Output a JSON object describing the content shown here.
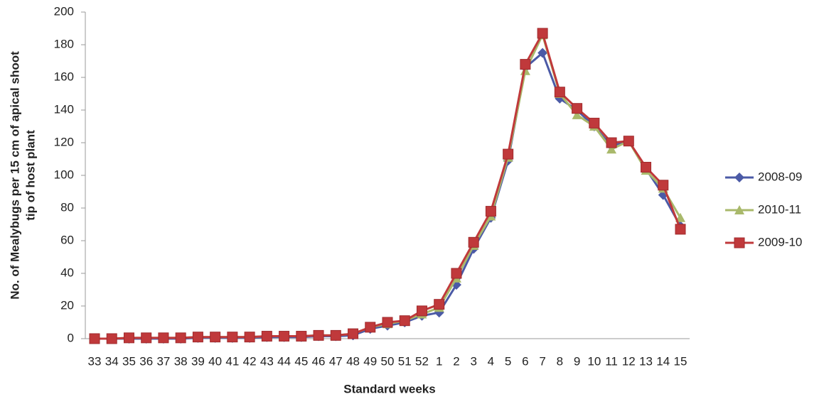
{
  "chart_data": {
    "type": "line",
    "x_label": "Standard weeks",
    "y_label": [
      "No. of Mealybugs per 15 cm of apical shoot",
      "tip of host plant"
    ],
    "categories": [
      "33",
      "34",
      "35",
      "36",
      "37",
      "38",
      "39",
      "40",
      "41",
      "42",
      "43",
      "44",
      "45",
      "46",
      "47",
      "48",
      "49",
      "50",
      "51",
      "52",
      "1",
      "2",
      "3",
      "4",
      "5",
      "6",
      "7",
      "8",
      "9",
      "10",
      "11",
      "12",
      "13",
      "14",
      "15"
    ],
    "series": [
      {
        "name": "2008-09",
        "color": "#4b5aa6",
        "marker": "diamond",
        "values": [
          0,
          0,
          0,
          0,
          0,
          0,
          0.5,
          0.5,
          0.5,
          0.5,
          1,
          1,
          1,
          1.5,
          1.5,
          2,
          6,
          8,
          10,
          14,
          16,
          33,
          55,
          74,
          109,
          166,
          175,
          147,
          140,
          130,
          118,
          121,
          104,
          88,
          69
        ]
      },
      {
        "name": "2010-11",
        "color": "#a9b96b",
        "marker": "triangle",
        "values": [
          0,
          0,
          0.5,
          0.5,
          0.5,
          0.5,
          1,
          1,
          1,
          1,
          1.5,
          1.5,
          1.5,
          2,
          2,
          3,
          7,
          9,
          11,
          15,
          19,
          37,
          57,
          75,
          111,
          164,
          186,
          150,
          137,
          130,
          116,
          121,
          103,
          92,
          74
        ]
      },
      {
        "name": "2009-10",
        "color": "#c0393b",
        "marker": "square",
        "values": [
          0,
          0,
          0.5,
          0.5,
          0.5,
          0.5,
          1,
          1,
          1,
          1,
          1.5,
          1.5,
          1.5,
          2,
          2,
          3,
          7,
          10,
          11,
          17,
          21,
          40,
          59,
          78,
          113,
          168,
          187,
          151,
          141,
          132,
          120,
          121,
          105,
          94,
          67
        ]
      }
    ],
    "ylim": [
      0,
      200
    ],
    "yticks": [
      0,
      20,
      40,
      60,
      80,
      100,
      120,
      140,
      160,
      180,
      200
    ],
    "grid": false,
    "legend": "right"
  }
}
